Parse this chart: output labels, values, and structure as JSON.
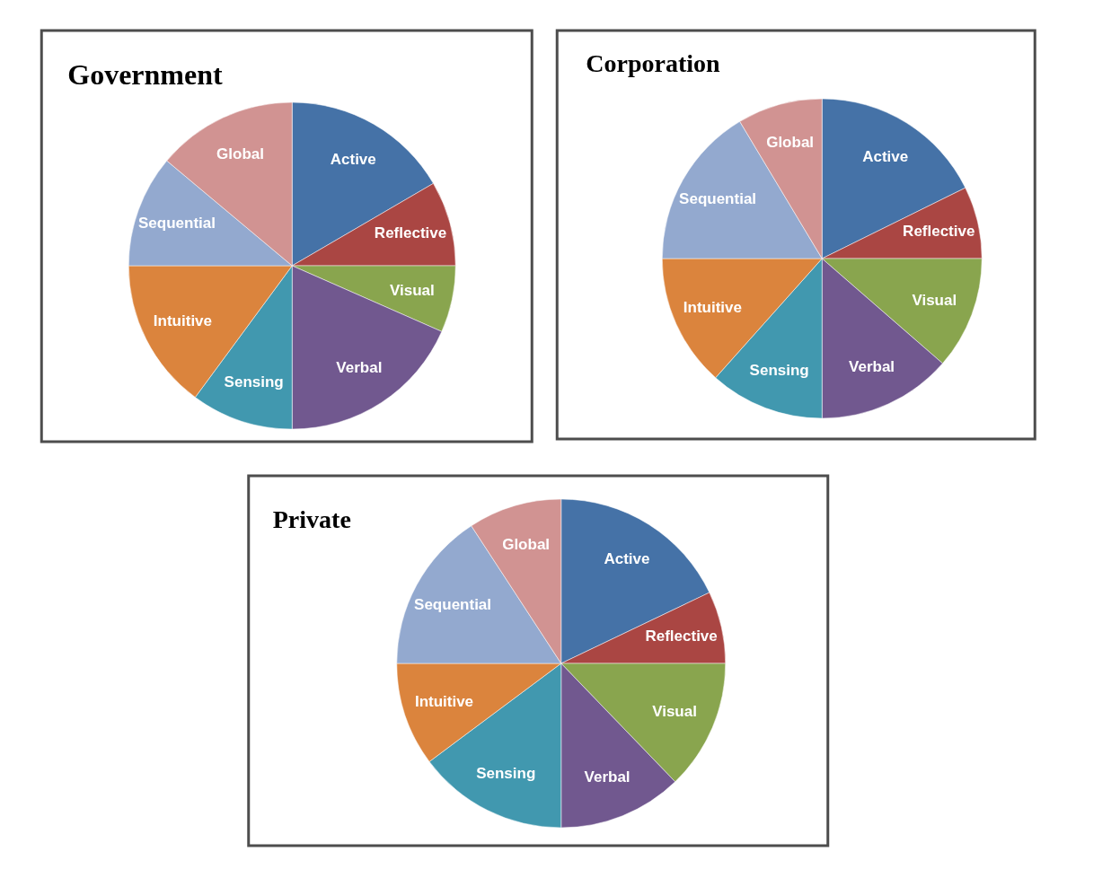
{
  "chart_data": [
    {
      "type": "pie",
      "title": "Government",
      "categories": [
        "Active",
        "Reflective",
        "Visual",
        "Verbal",
        "Sensing",
        "Intuitive",
        "Sequential",
        "Global"
      ],
      "values": [
        16.6,
        8.4,
        6.6,
        18.4,
        10.1,
        14.9,
        11.1,
        13.9
      ],
      "colors": [
        "#4572a7",
        "#aa4643",
        "#89a54e",
        "#71588f",
        "#4198af",
        "#db843d",
        "#93a9cf",
        "#d19392"
      ]
    },
    {
      "type": "pie",
      "title": "Corporation",
      "categories": [
        "Active",
        "Reflective",
        "Visual",
        "Verbal",
        "Sensing",
        "Intuitive",
        "Sequential",
        "Global"
      ],
      "values": [
        17.7,
        7.3,
        11.4,
        13.6,
        11.6,
        13.4,
        16.4,
        8.6
      ],
      "colors": [
        "#4572a7",
        "#aa4643",
        "#89a54e",
        "#71588f",
        "#4198af",
        "#db843d",
        "#93a9cf",
        "#d19392"
      ]
    },
    {
      "type": "pie",
      "title": "Private",
      "categories": [
        "Active",
        "Reflective",
        "Visual",
        "Verbal",
        "Sensing",
        "Intuitive",
        "Sequential",
        "Global"
      ],
      "values": [
        17.9,
        7.1,
        12.8,
        12.2,
        14.8,
        10.2,
        15.8,
        9.2
      ],
      "colors": [
        "#4572a7",
        "#aa4643",
        "#89a54e",
        "#71588f",
        "#4198af",
        "#db843d",
        "#93a9cf",
        "#d19392"
      ]
    }
  ]
}
